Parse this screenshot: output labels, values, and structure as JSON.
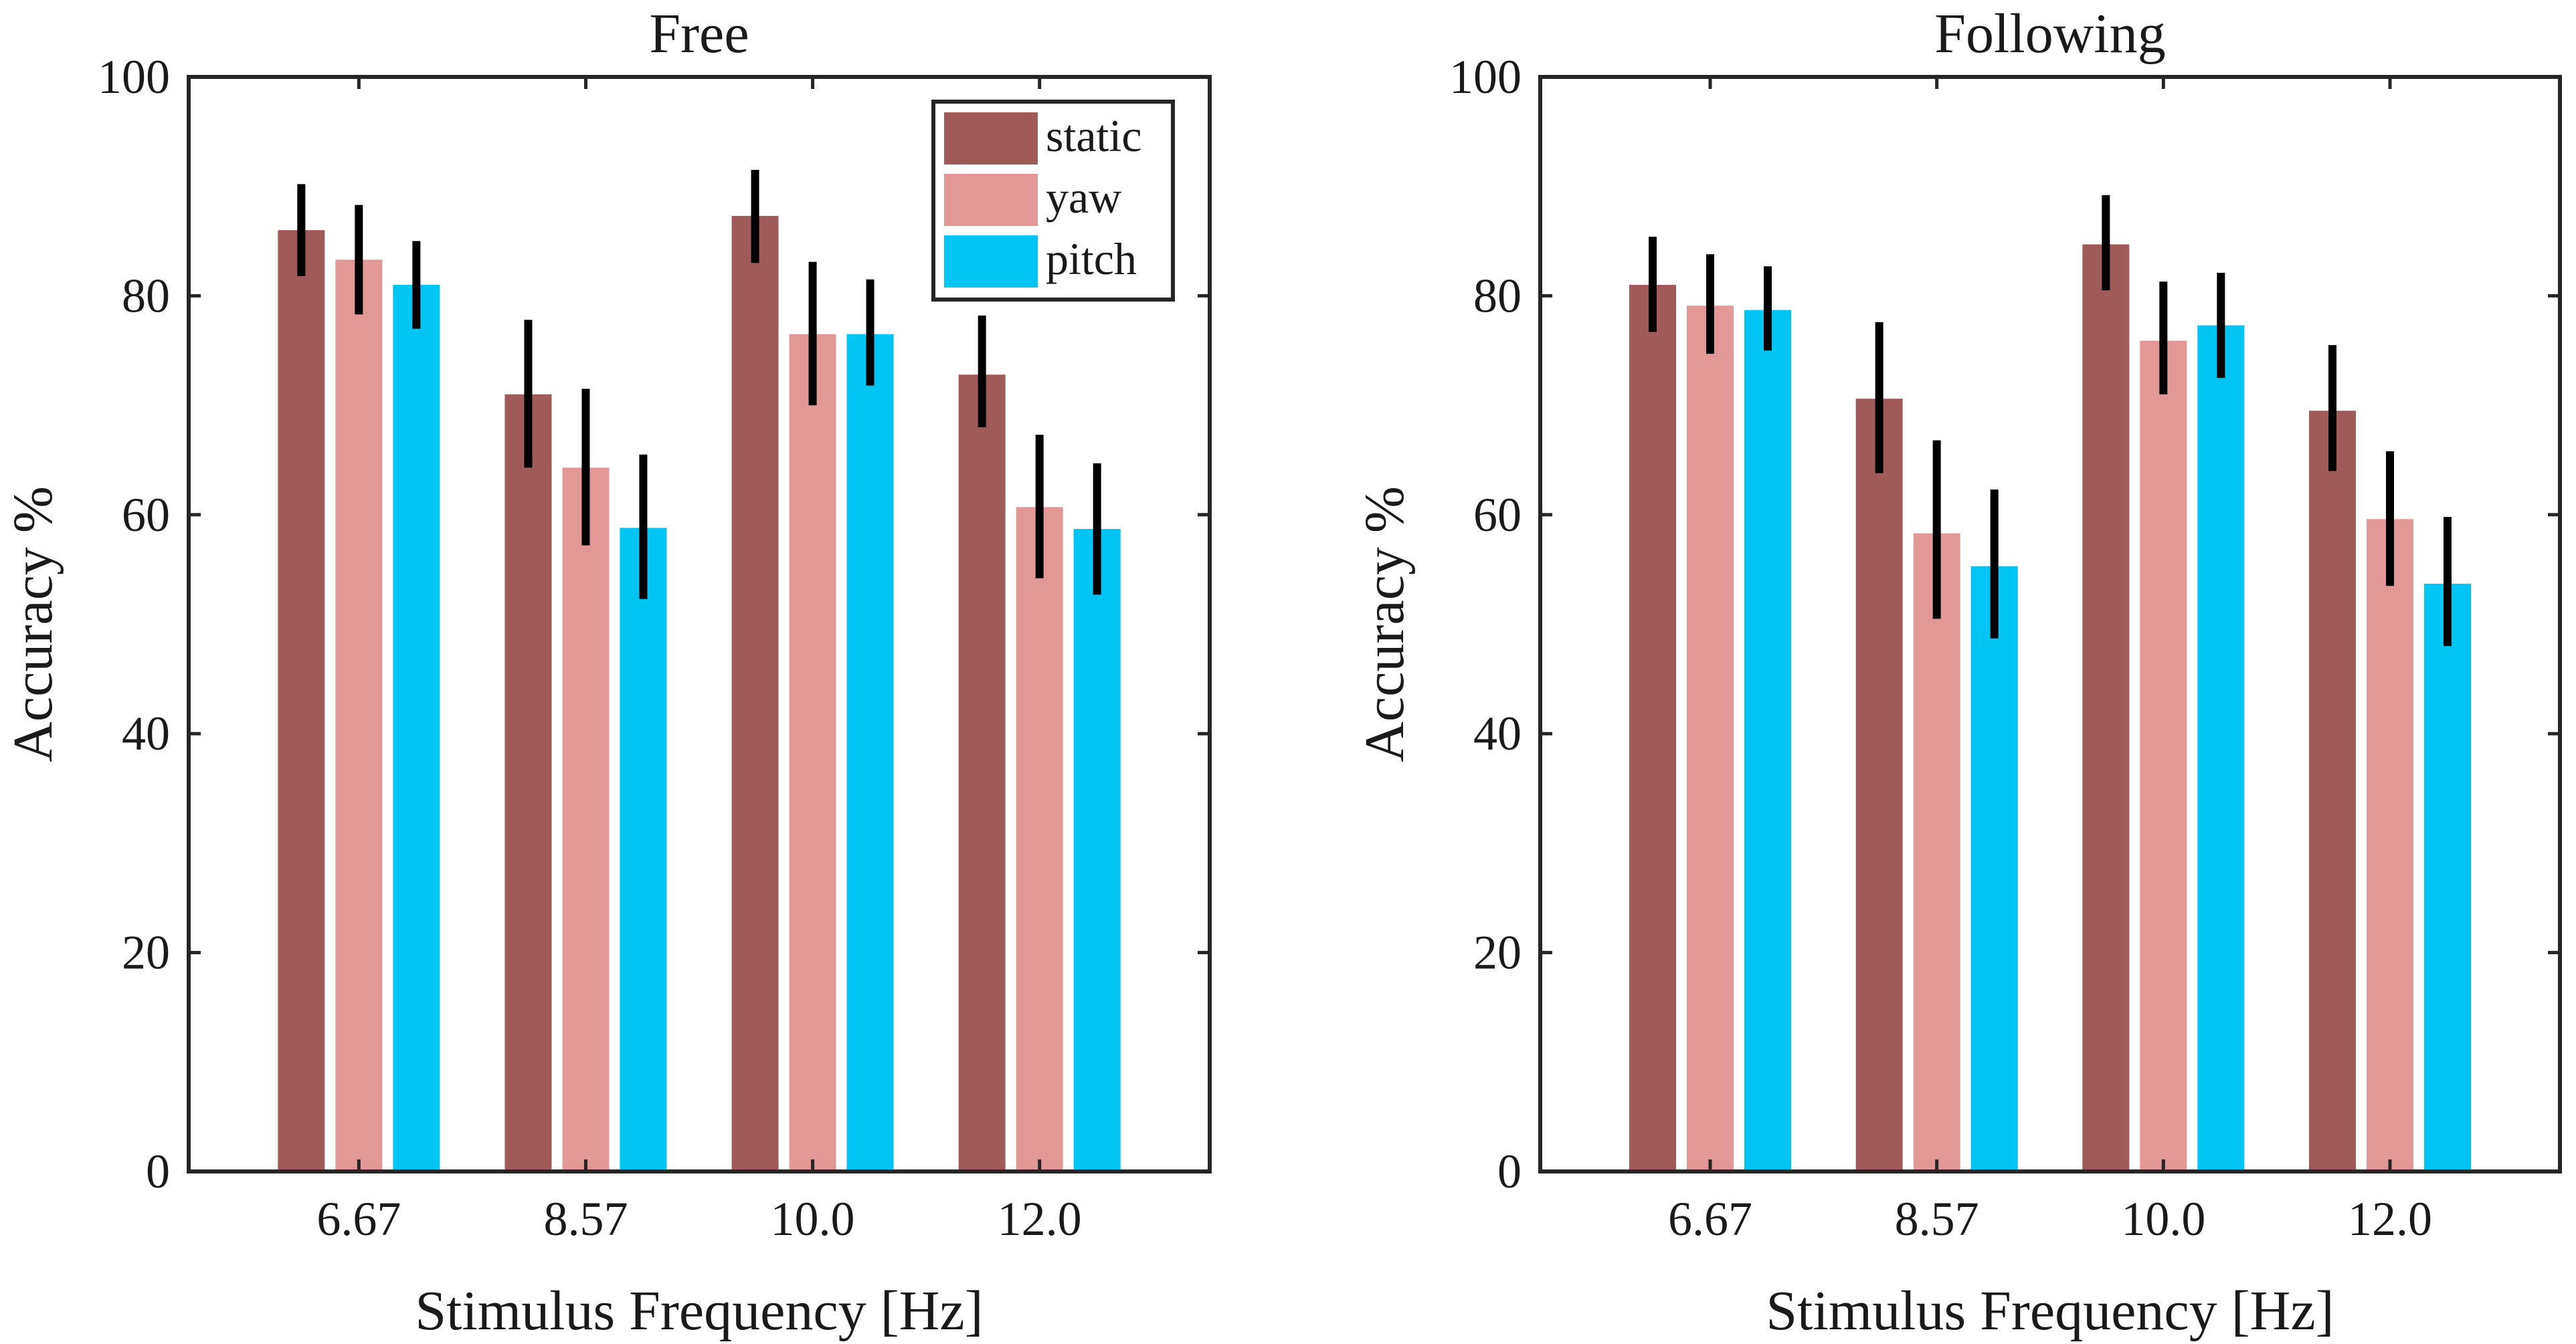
{
  "chart_data": [
    {
      "type": "bar",
      "title": "Free",
      "xlabel": "Stimulus Frequency [Hz]",
      "ylabel": "Accuracy %",
      "ylim": [
        0,
        100
      ],
      "yticks": [
        "0",
        "20",
        "40",
        "60",
        "80",
        "100"
      ],
      "categories": [
        "6.67",
        "8.57",
        "10.0",
        "12.0"
      ],
      "legend": {
        "placement": "top-right"
      },
      "series": [
        {
          "name": "static",
          "color": "#a05a5a",
          "values": [
            86.0,
            71.0,
            87.3,
            72.8
          ],
          "err_low": [
            81.8,
            64.3,
            83.0,
            68.0
          ],
          "err_high": [
            90.2,
            77.8,
            91.5,
            78.2
          ]
        },
        {
          "name": "yaw",
          "color": "#e39898",
          "values": [
            83.3,
            64.3,
            76.5,
            60.7
          ],
          "err_low": [
            78.3,
            57.2,
            70.0,
            54.2
          ],
          "err_high": [
            88.3,
            71.5,
            83.1,
            67.3
          ]
        },
        {
          "name": "pitch",
          "color": "#00c4f3",
          "values": [
            81.0,
            58.8,
            76.5,
            58.7
          ],
          "err_low": [
            77.0,
            52.3,
            71.8,
            52.7
          ],
          "err_high": [
            85.0,
            65.5,
            81.5,
            64.7
          ]
        }
      ]
    },
    {
      "type": "bar",
      "title": "Following",
      "xlabel": "Stimulus Frequency [Hz]",
      "ylabel": "Accuracy %",
      "ylim": [
        0,
        100
      ],
      "yticks": [
        "0",
        "20",
        "40",
        "60",
        "80",
        "100"
      ],
      "categories": [
        "6.67",
        "8.57",
        "10.0",
        "12.0"
      ],
      "series": [
        {
          "name": "static",
          "color": "#a05a5a",
          "values": [
            81.0,
            70.6,
            84.7,
            69.5
          ],
          "err_low": [
            76.7,
            63.8,
            80.5,
            64.0
          ],
          "err_high": [
            85.4,
            77.6,
            89.2,
            75.5
          ]
        },
        {
          "name": "yaw",
          "color": "#e39898",
          "values": [
            79.1,
            58.3,
            75.9,
            59.6
          ],
          "err_low": [
            74.7,
            50.5,
            71.0,
            53.5
          ],
          "err_high": [
            83.8,
            66.8,
            81.3,
            65.8
          ]
        },
        {
          "name": "pitch",
          "color": "#00c4f3",
          "values": [
            78.7,
            55.3,
            77.3,
            53.7
          ],
          "err_low": [
            75.0,
            48.7,
            72.5,
            48.0
          ],
          "err_high": [
            82.7,
            62.3,
            82.1,
            59.8
          ]
        }
      ]
    }
  ]
}
